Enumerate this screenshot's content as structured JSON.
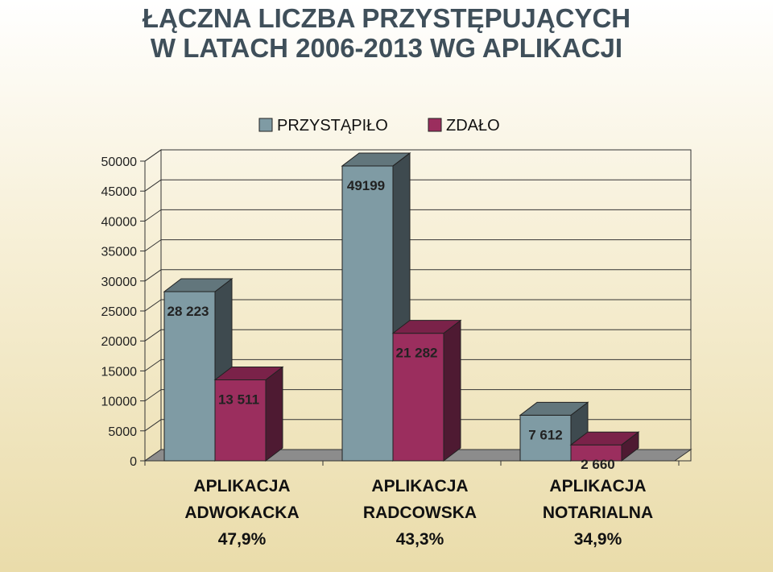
{
  "title_lines": [
    "ŁĄCZNA LICZBA PRZYSTĘPUJĄCYCH",
    "W LATACH 2006-2013 WG APLIKACJI"
  ],
  "colors": {
    "series1": "#7f9ba4",
    "series1_side": "#3e4a4f",
    "series1_top": "#62767c",
    "series2": "#9b2e5e",
    "series2_side": "#4e1a32",
    "series2_top": "#7a2249",
    "title": "#3f4f5a"
  },
  "chart_data": {
    "type": "bar",
    "style": "3d-clustered",
    "categories": [
      [
        "APLIKACJA",
        "ADWOKACKA",
        "47,9%"
      ],
      [
        "APLIKACJA",
        "RADCOWSKA",
        "43,3%"
      ],
      [
        "APLIKACJA",
        "NOTARIALNA",
        "34,9%"
      ]
    ],
    "series": [
      {
        "name": "PRZYSTĄPIŁO",
        "values": [
          28223,
          49199,
          7612
        ],
        "labels": [
          "28 223",
          "49199",
          "7 612"
        ]
      },
      {
        "name": "ZDAŁO",
        "values": [
          13511,
          21282,
          2660
        ],
        "labels": [
          "13 511",
          "21 282",
          "2 660"
        ]
      }
    ],
    "ylim": [
      0,
      50000
    ],
    "yticks": [
      "0",
      "5000",
      "10000",
      "15000",
      "20000",
      "25000",
      "30000",
      "35000",
      "40000",
      "45000",
      "50000"
    ],
    "grid": true,
    "legend_position": "top"
  }
}
